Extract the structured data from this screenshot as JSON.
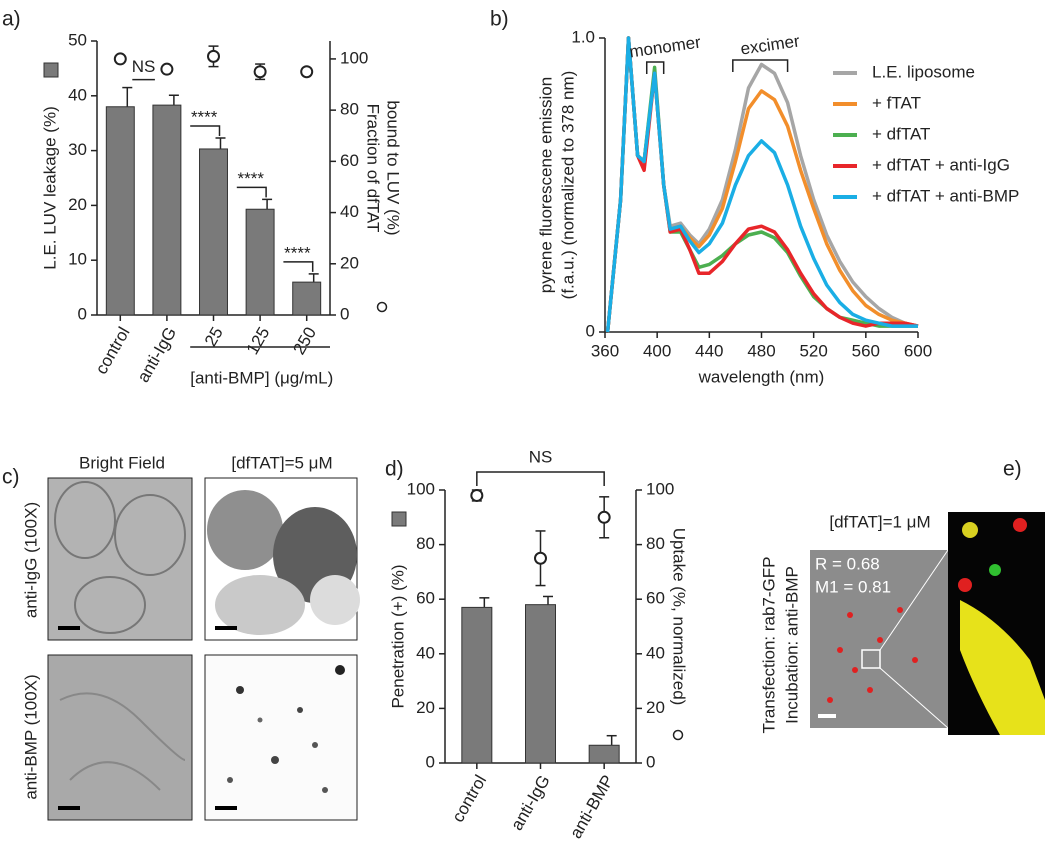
{
  "chart_data": [
    {
      "type": "bar",
      "panel_label": "a)",
      "categories": [
        "control",
        "anti-IgG",
        "25",
        "125",
        "250"
      ],
      "group_label": "[anti-BMP] (μg/mL)",
      "ylabel": "L.E. LUV leakage (%)",
      "y2label": [
        "Fraction of dfTAT",
        "bound to LUV (%)"
      ],
      "ylim": [
        0,
        50
      ],
      "yticks": [
        0,
        10,
        20,
        30,
        40,
        50
      ],
      "y2lim": [
        0,
        107
      ],
      "y2ticks": [
        0,
        20,
        40,
        60,
        80,
        100
      ],
      "series": [
        {
          "color": "#7a7a7a",
          "values": [
            38,
            38.3,
            30.3,
            19.3,
            6
          ],
          "errors": [
            3.5,
            1.8,
            2,
            1.8,
            1.5
          ]
        },
        {
          "axis": "y2",
          "marker": "circle",
          "color": "#222222",
          "values": [
            100,
            96,
            101,
            95,
            95
          ],
          "errors": [
            1,
            1,
            4,
            3,
            1
          ]
        }
      ],
      "annotations": [
        "NS",
        "****",
        "****",
        "****"
      ]
    },
    {
      "type": "line",
      "panel_label": "b)",
      "xlabel": "wavelength (nm)",
      "ylabel": [
        "pyrene fluorescene emission",
        "(f.a.u.) (normalized to 378 nm)"
      ],
      "x": [
        362,
        372,
        378,
        385,
        390,
        398,
        405,
        410,
        418,
        425,
        432,
        440,
        450,
        460,
        470,
        480,
        490,
        500,
        510,
        520,
        530,
        540,
        550,
        560,
        570,
        580,
        590,
        600
      ],
      "xlim": [
        360,
        600
      ],
      "xticks": [
        360,
        400,
        440,
        480,
        520,
        560,
        600
      ],
      "ylim": [
        0,
        1
      ],
      "yticks": [
        0,
        {
          "value": 1,
          "label": "1.0"
        }
      ],
      "annotations": [
        "monomer",
        "excimer"
      ],
      "series": [
        {
          "name": "L.E. liposome",
          "color": "#a6a6a6",
          "values": [
            0,
            0.45,
            1.0,
            0.6,
            0.58,
            0.88,
            0.5,
            0.36,
            0.37,
            0.33,
            0.3,
            0.35,
            0.45,
            0.62,
            0.83,
            0.91,
            0.88,
            0.78,
            0.6,
            0.45,
            0.33,
            0.24,
            0.17,
            0.12,
            0.08,
            0.05,
            0.03,
            0.02
          ]
        },
        {
          "name": "+ fTAT",
          "color": "#f28e2b",
          "values": [
            0,
            0.45,
            1.0,
            0.6,
            0.58,
            0.88,
            0.5,
            0.35,
            0.36,
            0.32,
            0.29,
            0.33,
            0.42,
            0.58,
            0.76,
            0.82,
            0.79,
            0.7,
            0.55,
            0.42,
            0.3,
            0.21,
            0.14,
            0.09,
            0.06,
            0.04,
            0.03,
            0.02
          ]
        },
        {
          "name": "+ dfTAT",
          "color": "#4caf50",
          "values": [
            0,
            0.45,
            1.0,
            0.6,
            0.58,
            0.9,
            0.5,
            0.34,
            0.34,
            0.28,
            0.22,
            0.23,
            0.26,
            0.3,
            0.33,
            0.34,
            0.32,
            0.27,
            0.19,
            0.12,
            0.08,
            0.05,
            0.04,
            0.03,
            0.02,
            0.02,
            0.02,
            0.02
          ]
        },
        {
          "name": "+ dfTAT + anti-IgG",
          "color": "#e8262a",
          "values": [
            0,
            0.45,
            1.0,
            0.6,
            0.55,
            0.88,
            0.5,
            0.34,
            0.35,
            0.28,
            0.2,
            0.2,
            0.24,
            0.3,
            0.35,
            0.36,
            0.34,
            0.28,
            0.2,
            0.13,
            0.08,
            0.05,
            0.03,
            0.02,
            0.03,
            0.03,
            0.03,
            0.02
          ]
        },
        {
          "name": "+ dfTAT + anti-BMP",
          "color": "#1aaee5",
          "values": [
            0,
            0.45,
            1.0,
            0.6,
            0.58,
            0.88,
            0.5,
            0.35,
            0.36,
            0.31,
            0.27,
            0.3,
            0.37,
            0.5,
            0.6,
            0.65,
            0.61,
            0.5,
            0.36,
            0.25,
            0.16,
            0.1,
            0.06,
            0.04,
            0.03,
            0.02,
            0.02,
            0.02
          ]
        }
      ]
    },
    {
      "type": "bar",
      "panel_label": "d)",
      "categories": [
        "control",
        "anti-IgG",
        "anti-BMP"
      ],
      "ylabel": "Penetration (+)  (%)",
      "y2label": [
        "Uptake (%, normalized)"
      ],
      "ylim": [
        0,
        100
      ],
      "yticks": [
        0,
        20,
        40,
        60,
        80,
        100
      ],
      "y2lim": [
        0,
        100
      ],
      "y2ticks": [
        0,
        20,
        40,
        60,
        80,
        100
      ],
      "series": [
        {
          "color": "#7a7a7a",
          "values": [
            57,
            58,
            6.5
          ],
          "errors": [
            3.5,
            3,
            3.5
          ]
        },
        {
          "axis": "y2",
          "marker": "circle",
          "color": "#222222",
          "values": [
            98,
            75,
            90
          ],
          "errors": [
            2,
            10,
            7.5
          ]
        }
      ],
      "annotations": [
        "NS"
      ]
    }
  ],
  "images": {
    "c": {
      "panel_label": "c)",
      "columns": [
        "Bright Field",
        "[dfTAT]=5 μM"
      ],
      "rows": [
        "anti-IgG (100X)",
        "anti-BMP (100X)"
      ]
    },
    "e": {
      "panel_label": "e)",
      "title": "[dfTAT]=1 μM",
      "stats": [
        "R = 0.68",
        "M1 = 0.81"
      ],
      "side": [
        "Transfection: rab7-GFP",
        "Incubation: anti-BMP"
      ]
    }
  }
}
